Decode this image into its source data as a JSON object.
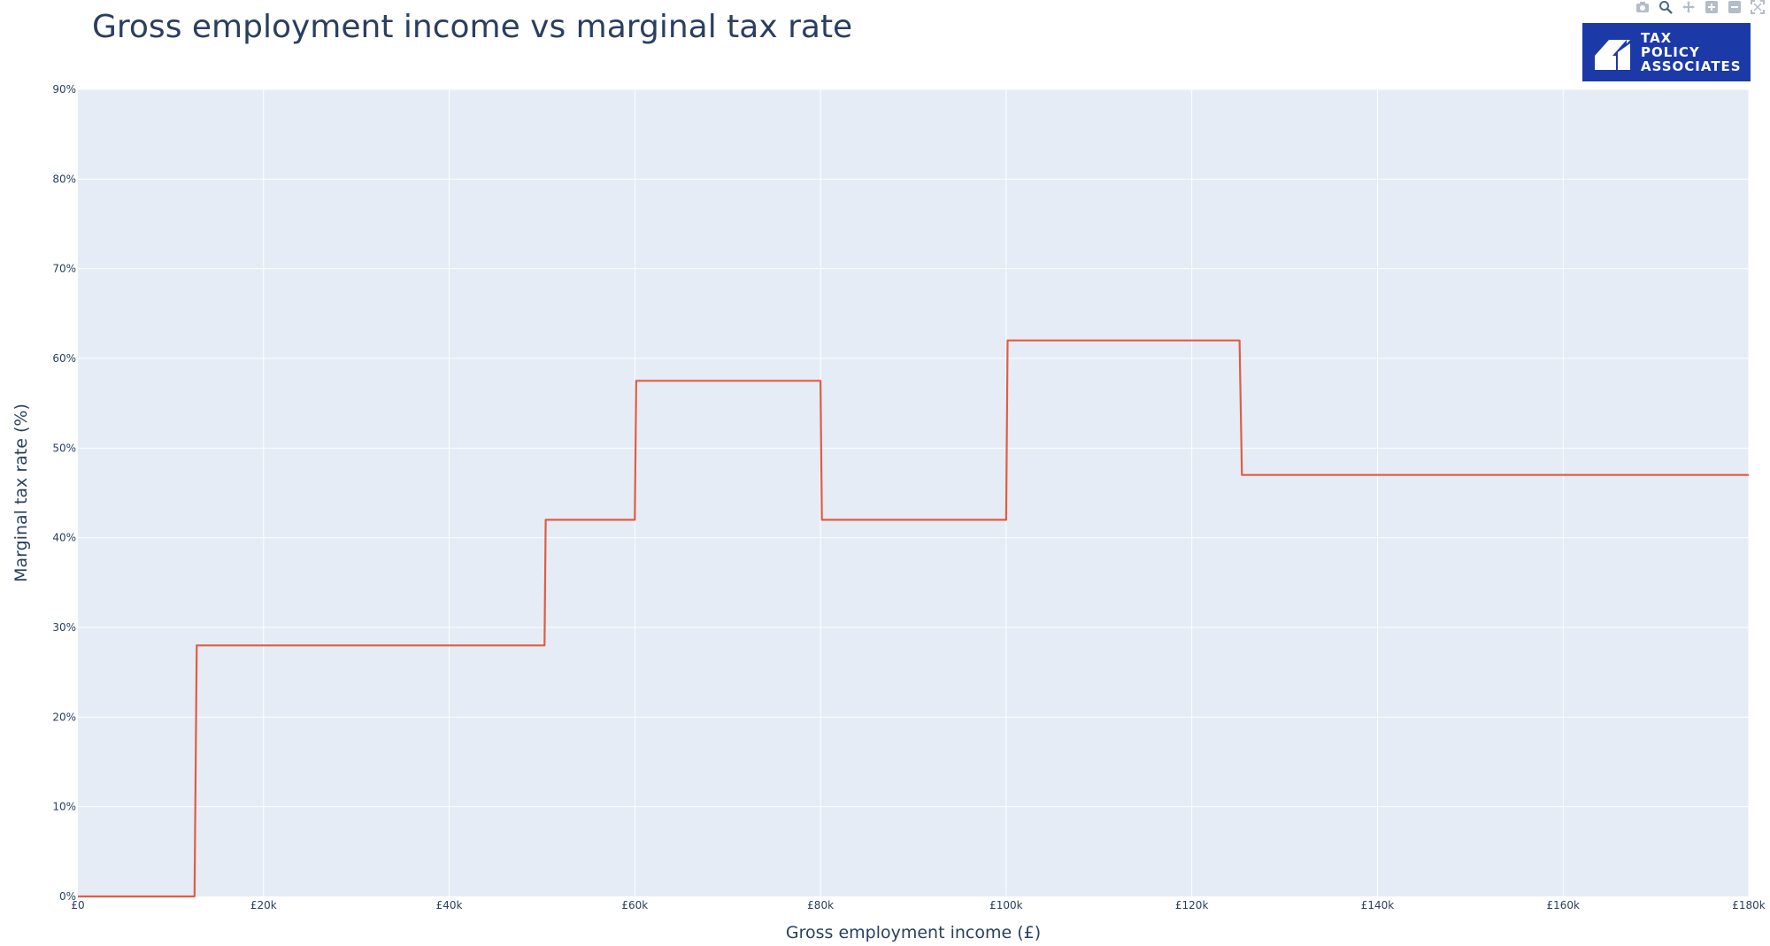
{
  "header": {
    "title": "Gross employment income vs marginal tax rate"
  },
  "logo": {
    "lines": [
      "TAX",
      "POLICY",
      "ASSOCIATES"
    ],
    "color": "#1b3aa8"
  },
  "modebar": {
    "icons": [
      "camera-icon",
      "zoom-icon",
      "pan-icon",
      "zoom-in-icon",
      "zoom-out-icon",
      "autoscale-icon"
    ]
  },
  "colors": {
    "line": "#e15c43",
    "plot_bg": "#e5ecf6",
    "grid": "#ffffff"
  },
  "chart_data": {
    "type": "line",
    "title": "Gross employment income vs marginal tax rate",
    "xlabel": "Gross employment income (£)",
    "ylabel": "Marginal tax rate (%)",
    "xlim": [
      0,
      180000
    ],
    "ylim": [
      0,
      90
    ],
    "x_ticks": [
      0,
      20000,
      40000,
      60000,
      80000,
      100000,
      120000,
      140000,
      160000,
      180000
    ],
    "x_tick_labels": [
      "£0",
      "£20k",
      "£40k",
      "£60k",
      "£80k",
      "£100k",
      "£120k",
      "£140k",
      "£160k",
      "£180k"
    ],
    "y_ticks": [
      0,
      10,
      20,
      30,
      40,
      50,
      60,
      70,
      80,
      90
    ],
    "y_tick_labels": [
      "0%",
      "10%",
      "20%",
      "30%",
      "40%",
      "50%",
      "60%",
      "70%",
      "80%",
      "90%"
    ],
    "grid": true,
    "series": [
      {
        "x": [
          0,
          12570,
          12800,
          50270,
          50400,
          60000,
          60150,
          80000,
          80150,
          100000,
          100150,
          125140,
          125400,
          180000
        ],
        "y": [
          0,
          0,
          28,
          28,
          42,
          42,
          57.5,
          57.5,
          42,
          42,
          62,
          62,
          47,
          47
        ]
      }
    ]
  }
}
